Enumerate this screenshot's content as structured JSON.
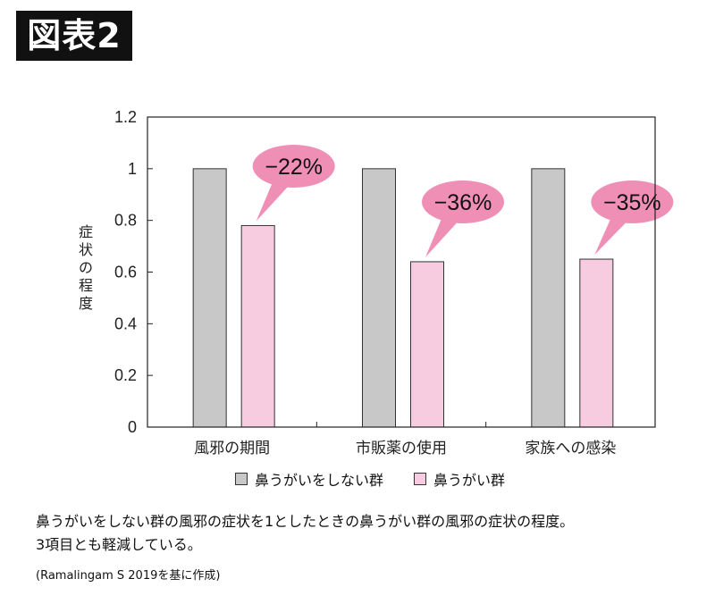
{
  "figure_label": "図表2",
  "colors": {
    "control": "#c8c8c8",
    "treatment": "#f7cbe0",
    "callout": "#ef8fb6",
    "bar_stroke": "#333333"
  },
  "chart_data": {
    "type": "bar",
    "categories": [
      "風邪の期間",
      "市販薬の使用",
      "家族への感染"
    ],
    "series": [
      {
        "name": "鼻うがいをしない群",
        "values": [
          1,
          1,
          1
        ]
      },
      {
        "name": "鼻うがい群",
        "values": [
          0.78,
          0.64,
          0.65
        ]
      }
    ],
    "ylabel": "症状の程度",
    "ylim": [
      0,
      1.2
    ],
    "yticks": [
      "0",
      "0.2",
      "0.4",
      "0.6",
      "0.8",
      "1",
      "1.2"
    ],
    "annotations": [
      "−22%",
      "−36%",
      "−35%"
    ],
    "legend_position": "bottom",
    "grid": false
  },
  "legend": {
    "control_label": "鼻うがいをしない群",
    "treatment_label": "鼻うがい群"
  },
  "caption": {
    "line1": "鼻うがいをしない群の風邪の症状を1としたときの鼻うがい群の風邪の症状の程度。",
    "line2": "3項目とも軽減している。",
    "source": "(Ramalingam S 2019を基に作成)"
  }
}
